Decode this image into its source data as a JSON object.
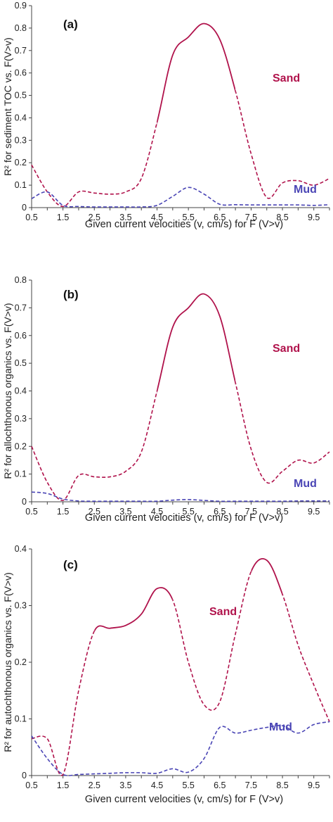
{
  "colors": {
    "sand": "#b0124b",
    "mud": "#4a45b5",
    "axis": "#444444"
  },
  "chart_data": [
    {
      "type": "line",
      "panel_label": "(a)",
      "ylabel": "R² for sediment TOC vs. F(V>v)",
      "xlabel": "Given current velocities (v, cm/s) for F (V>v)",
      "xlim": [
        0.5,
        10
      ],
      "ylim": [
        0,
        0.9
      ],
      "xticks": [
        "0.5",
        "1.5",
        "2.5",
        "3.5",
        "4.5",
        "5.5",
        "6.5",
        "7.5",
        "8.5",
        "9.5"
      ],
      "yticks": [
        "0",
        "0.1",
        "0.2",
        "0.3",
        "0.4",
        "0.5",
        "0.6",
        "0.7",
        "0.8",
        "0.9"
      ],
      "series": [
        {
          "name": "Sand",
          "x": [
            0.5,
            1.0,
            1.5,
            2.0,
            2.5,
            3.0,
            3.5,
            4.0,
            4.5,
            5.0,
            5.5,
            6.0,
            6.5,
            7.0,
            7.5,
            8.0,
            8.5,
            9.0,
            9.5,
            10.0
          ],
          "y": [
            0.19,
            0.07,
            0.005,
            0.07,
            0.065,
            0.06,
            0.07,
            0.13,
            0.38,
            0.68,
            0.76,
            0.82,
            0.75,
            0.52,
            0.24,
            0.045,
            0.11,
            0.12,
            0.1,
            0.13
          ]
        },
        {
          "name": "Mud",
          "x": [
            0.5,
            1.0,
            1.5,
            2.0,
            2.5,
            3.0,
            3.5,
            4.0,
            4.5,
            5.0,
            5.5,
            6.0,
            6.5,
            7.0,
            7.5,
            8.0,
            8.5,
            9.0,
            9.5,
            10.0
          ],
          "y": [
            0.04,
            0.07,
            0.01,
            0.005,
            0.003,
            0.003,
            0.003,
            0.003,
            0.01,
            0.05,
            0.09,
            0.06,
            0.015,
            0.013,
            0.012,
            0.012,
            0.012,
            0.012,
            0.01,
            0.013
          ]
        }
      ]
    },
    {
      "type": "line",
      "panel_label": "(b)",
      "ylabel": "R² for allochthonous organics vs. F(V>v)",
      "xlabel": "Given current velocities (v, cm/s) for F (V>v)",
      "xlim": [
        0.5,
        10
      ],
      "ylim": [
        0,
        0.8
      ],
      "xticks": [
        "0.5",
        "1.5",
        "2.5",
        "3.5",
        "4.5",
        "5.5",
        "6.5",
        "7.5",
        "8.5",
        "9.5"
      ],
      "yticks": [
        "0",
        "0.1",
        "0.2",
        "0.3",
        "0.4",
        "0.5",
        "0.6",
        "0.7",
        "0.8"
      ],
      "series": [
        {
          "name": "Sand",
          "x": [
            0.5,
            1.0,
            1.5,
            2.0,
            2.5,
            3.0,
            3.5,
            4.0,
            4.5,
            5.0,
            5.5,
            6.0,
            6.5,
            7.0,
            7.5,
            8.0,
            8.5,
            9.0,
            9.5,
            10.0
          ],
          "y": [
            0.2,
            0.07,
            0.005,
            0.095,
            0.09,
            0.09,
            0.11,
            0.18,
            0.4,
            0.63,
            0.7,
            0.75,
            0.67,
            0.43,
            0.19,
            0.07,
            0.11,
            0.15,
            0.14,
            0.18
          ]
        },
        {
          "name": "Mud",
          "x": [
            0.5,
            1.0,
            1.5,
            2.0,
            2.5,
            3.0,
            3.5,
            4.0,
            4.5,
            5.0,
            5.5,
            6.0,
            6.5,
            7.0,
            7.5,
            8.0,
            8.5,
            9.0,
            9.5,
            10.0
          ],
          "y": [
            0.035,
            0.03,
            0.01,
            0.003,
            0.002,
            0.002,
            0.002,
            0.002,
            0.002,
            0.006,
            0.008,
            0.005,
            0.002,
            0.002,
            0.002,
            0.002,
            0.002,
            0.003,
            0.003,
            0.003
          ]
        }
      ]
    },
    {
      "type": "line",
      "panel_label": "(c)",
      "ylabel": "R² for autochthonous organics vs. F(V>v)",
      "xlabel": "Given current velocities (v, cm/s) for F (V>v)",
      "xlim": [
        0.5,
        10
      ],
      "ylim": [
        0,
        0.4
      ],
      "xticks": [
        "0.5",
        "1.5",
        "2.5",
        "3.5",
        "4.5",
        "5.5",
        "6.5",
        "7.5",
        "8.5",
        "9.5"
      ],
      "yticks": [
        "0",
        "0.1",
        "0.2",
        "0.3",
        "0.4"
      ],
      "series": [
        {
          "name": "Sand",
          "x": [
            0.5,
            1.0,
            1.5,
            2.0,
            2.5,
            3.0,
            3.5,
            4.0,
            4.5,
            5.0,
            5.5,
            6.0,
            6.5,
            7.0,
            7.5,
            8.0,
            8.5,
            9.0,
            9.5,
            10.0
          ],
          "y": [
            0.065,
            0.065,
            0.002,
            0.15,
            0.255,
            0.26,
            0.265,
            0.285,
            0.33,
            0.31,
            0.2,
            0.125,
            0.13,
            0.25,
            0.36,
            0.38,
            0.32,
            0.23,
            0.16,
            0.095
          ]
        },
        {
          "name": "Mud",
          "x": [
            0.5,
            1.0,
            1.5,
            2.0,
            2.5,
            3.0,
            3.5,
            4.0,
            4.5,
            5.0,
            5.5,
            6.0,
            6.5,
            7.0,
            7.5,
            8.0,
            8.5,
            9.0,
            9.5,
            10.0
          ],
          "y": [
            0.07,
            0.03,
            0.002,
            0.002,
            0.003,
            0.004,
            0.005,
            0.005,
            0.004,
            0.012,
            0.006,
            0.03,
            0.085,
            0.075,
            0.08,
            0.085,
            0.088,
            0.075,
            0.09,
            0.095
          ]
        }
      ]
    }
  ]
}
